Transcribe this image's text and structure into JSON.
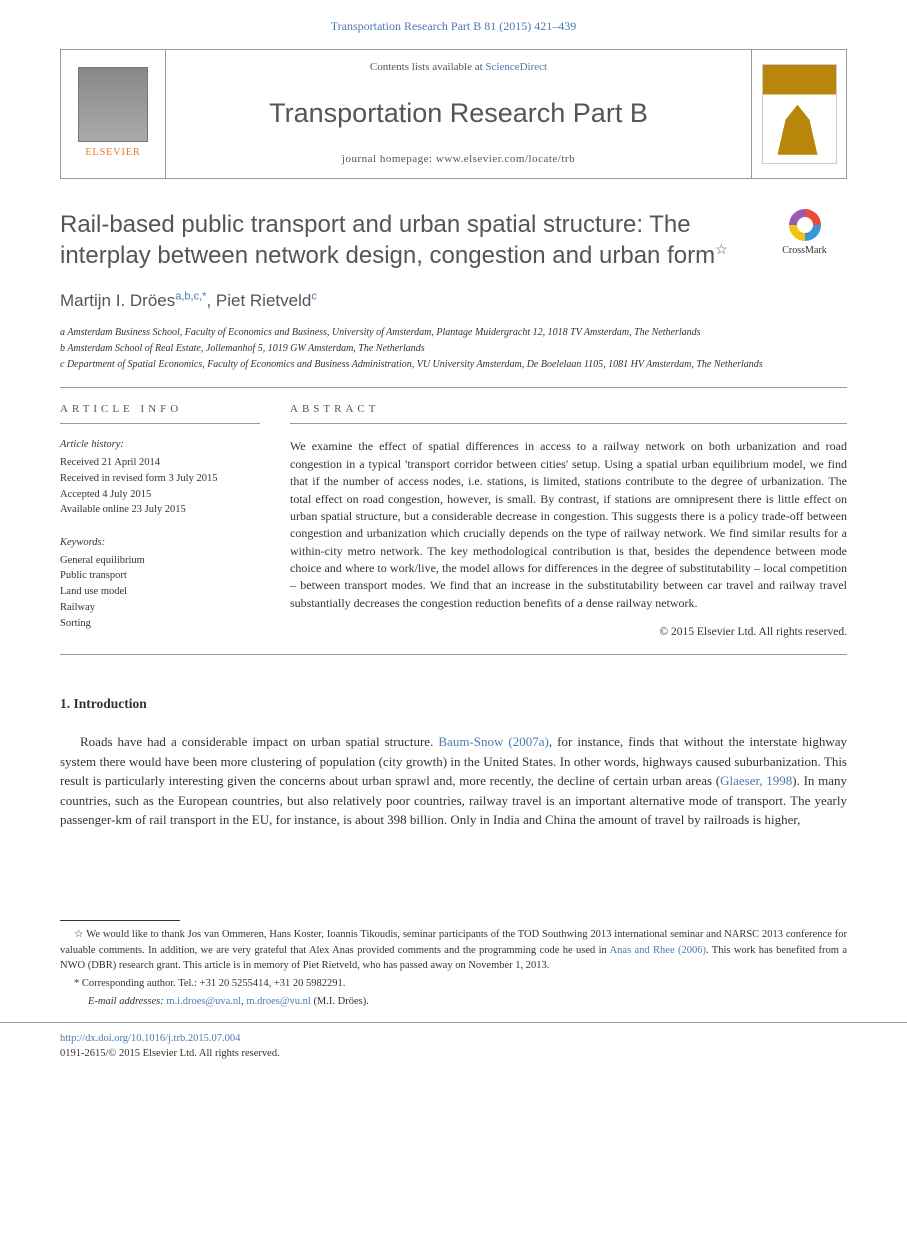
{
  "topref": "Transportation Research Part B 81 (2015) 421–439",
  "header": {
    "contents_prefix": "Contents lists available at ",
    "contents_link": "ScienceDirect",
    "journal": "Transportation Research Part B",
    "homepage_label": "journal homepage: ",
    "homepage_url": "www.elsevier.com/locate/trb",
    "publisher": "ELSEVIER"
  },
  "article": {
    "title": "Rail-based public transport and urban spatial structure: The interplay between network design, congestion and urban form",
    "crossmark": "CrossMark",
    "authors_html": "Martijn I. Dröes",
    "author1": "Martijn I. Dröes",
    "author1_sup": "a,b,c,*",
    "author2": "Piet Rietveld",
    "author2_sup": "c",
    "affiliations": [
      "a Amsterdam Business School, Faculty of Economics and Business, University of Amsterdam, Plantage Muidergracht 12, 1018 TV Amsterdam, The Netherlands",
      "b Amsterdam School of Real Estate, Jollemanhof 5, 1019 GW Amsterdam, The Netherlands",
      "c Department of Spatial Economics, Faculty of Economics and Business Administration, VU University Amsterdam, De Boelelaan 1105, 1081 HV Amsterdam, The Netherlands"
    ]
  },
  "info": {
    "heading": "ARTICLE INFO",
    "history_label": "Article history:",
    "history": [
      "Received 21 April 2014",
      "Received in revised form 3 July 2015",
      "Accepted 4 July 2015",
      "Available online 23 July 2015"
    ],
    "keywords_label": "Keywords:",
    "keywords": [
      "General equilibrium",
      "Public transport",
      "Land use model",
      "Railway",
      "Sorting"
    ]
  },
  "abstract": {
    "heading": "ABSTRACT",
    "text": "We examine the effect of spatial differences in access to a railway network on both urbanization and road congestion in a typical 'transport corridor between cities' setup. Using a spatial urban equilibrium model, we find that if the number of access nodes, i.e. stations, is limited, stations contribute to the degree of urbanization. The total effect on road congestion, however, is small. By contrast, if stations are omnipresent there is little effect on urban spatial structure, but a considerable decrease in congestion. This suggests there is a policy trade-off between congestion and urbanization which crucially depends on the type of railway network. We find similar results for a within-city metro network. The key methodological contribution is that, besides the dependence between mode choice and where to work/live, the model allows for differences in the degree of substitutability – local competition – between transport modes. We find that an increase in the substitutability between car travel and railway travel substantially decreases the congestion reduction benefits of a dense railway network.",
    "copyright": "© 2015 Elsevier Ltd. All rights reserved."
  },
  "section1": {
    "heading": "1. Introduction",
    "p1_prefix": "Roads have had a considerable impact on urban spatial structure. ",
    "p1_link1": "Baum-Snow (2007a)",
    "p1_mid1": ", for instance, finds that without the interstate highway system there would have been more clustering of population (city growth) in the United States. In other words, highways caused suburbanization. This result is particularly interesting given the concerns about urban sprawl and, more recently, the decline of certain urban areas (",
    "p1_link2": "Glaeser, 1998",
    "p1_mid2": "). In many countries, such as the European countries, but also relatively poor countries, railway travel is an important alternative mode of transport. The yearly passenger-km of rail transport in the EU, for instance, is about 398 billion. Only in India and China the amount of travel by railroads is higher,"
  },
  "footnotes": {
    "star_prefix": "☆ We would like to thank Jos van Ommeren, Hans Koster, Ioannis Tikoudis, seminar participants of the TOD Southwing 2013 international seminar and NARSC 2013 conference for valuable comments. In addition, we are very grateful that Alex Anas provided comments and the programming code he used in ",
    "star_link": "Anas and Rhee (2006)",
    "star_suffix": ". This work has benefited from a NWO (DBR) research grant. This article is in memory of Piet Rietveld, who has passed away on November 1, 2013.",
    "corr": "* Corresponding author. Tel.: +31 20 5255414, +31 20 5982291.",
    "email_label": "E-mail addresses: ",
    "email1": "m.i.droes@uva.nl",
    "email_sep": ", ",
    "email2": "m.droes@vu.nl",
    "email_author": " (M.I. Dröes)."
  },
  "bottom": {
    "doi": "http://dx.doi.org/10.1016/j.trb.2015.07.004",
    "issn_line": "0191-2615/© 2015 Elsevier Ltd. All rights reserved."
  }
}
